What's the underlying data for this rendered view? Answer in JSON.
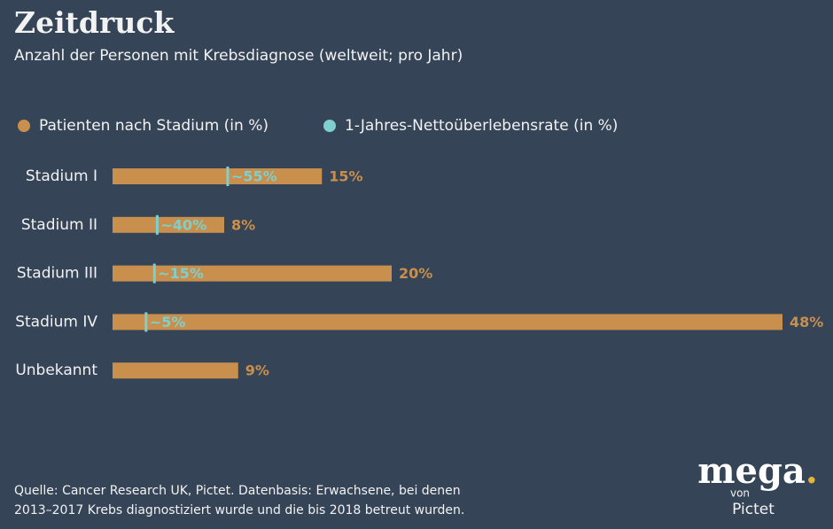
{
  "chart_data": {
    "type": "bar-marker",
    "title": "Zeitdruck",
    "subtitle": "Anzahl der Personen mit Krebsdiagnose (weltweit; pro Jahr)",
    "categories": [
      "Stadium I",
      "Stadium II",
      "Stadium III",
      "Stadium IV",
      "Unbekannt"
    ],
    "series": [
      {
        "name": "Patienten nach Stadium (in %)",
        "color": "#c98f4c",
        "values": [
          15,
          8,
          20,
          48,
          9
        ],
        "value_labels": [
          "15%",
          "8%",
          "20%",
          "48%",
          "9%"
        ]
      },
      {
        "name": "1-Jahres-Nettoüberlebensrate (in %)",
        "color": "#7ecfcf",
        "values": [
          55,
          40,
          15,
          5,
          null
        ],
        "value_labels": [
          "~55%",
          "~40%",
          "~15%",
          "~5%",
          null
        ]
      }
    ],
    "source": [
      "Quelle: Cancer Research UK, Pictet. Datenbasis: Erwachsene, bei denen",
      "2013–2017 Krebs diagnostiziert wurde und die bis 2018 betreut wurden."
    ],
    "logo": {
      "word": "mega",
      "dot": ".",
      "von": "von",
      "brand": "Pictet"
    }
  }
}
